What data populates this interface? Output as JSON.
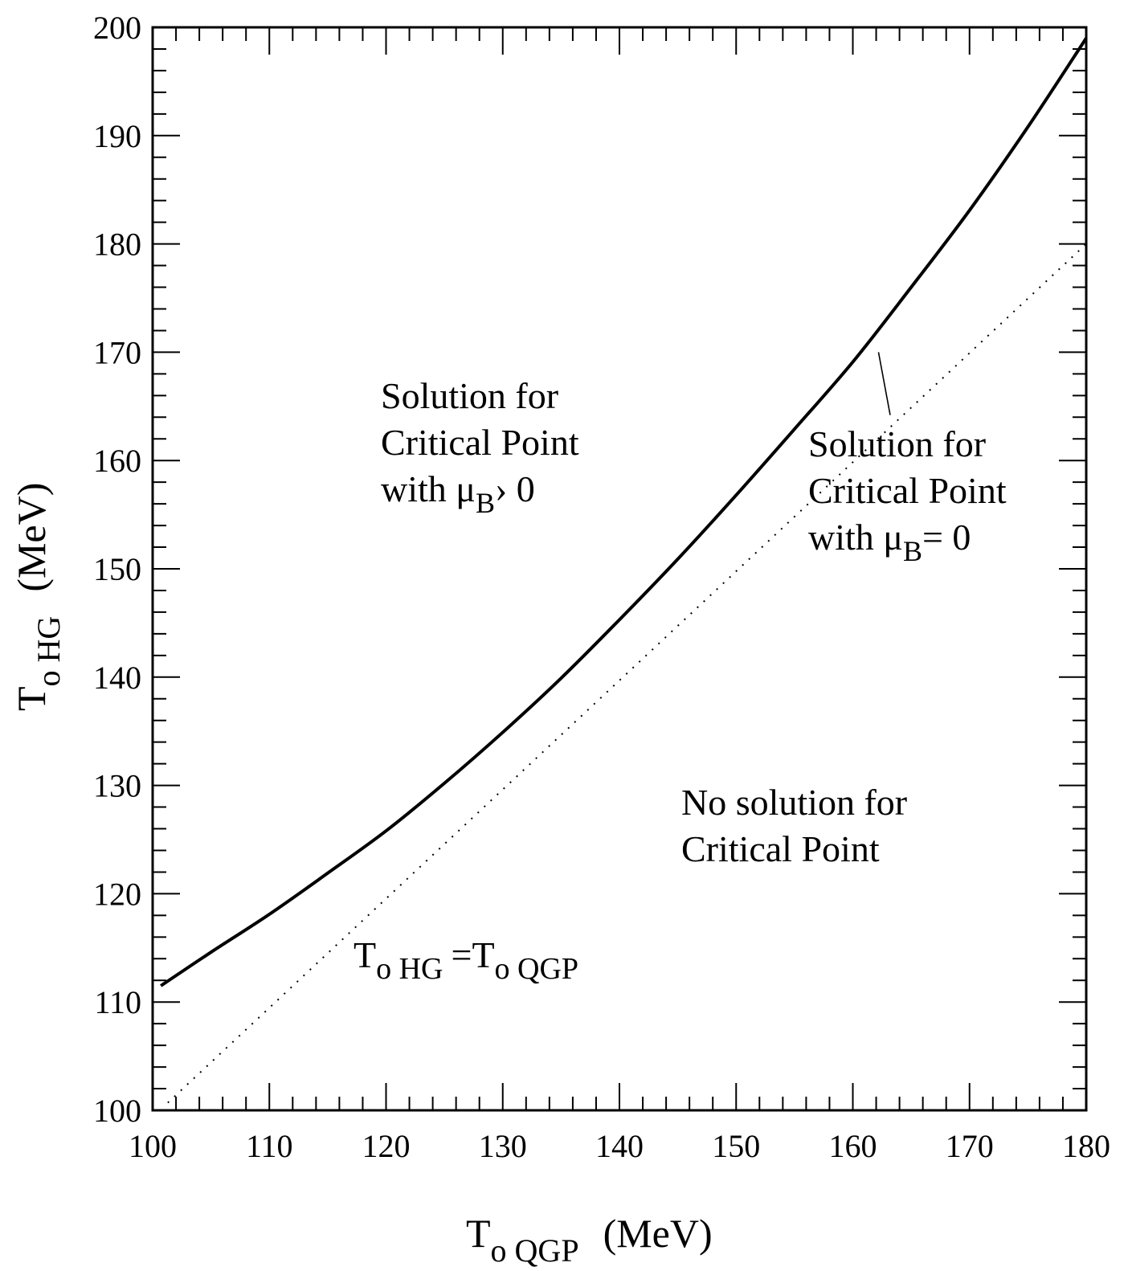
{
  "chart_data": {
    "type": "line",
    "xlabel": {
      "main": "T",
      "sub": "o QGP",
      "unit": "(MeV)"
    },
    "ylabel": {
      "main": "T",
      "sub": "o HG",
      "unit": "(MeV)"
    },
    "xlim": [
      100,
      180
    ],
    "ylim": [
      100,
      200
    ],
    "x_ticks": [
      "100",
      "110",
      "120",
      "130",
      "140",
      "150",
      "160",
      "170",
      "180"
    ],
    "y_ticks": [
      "100",
      "110",
      "120",
      "130",
      "140",
      "150",
      "160",
      "170",
      "180",
      "190",
      "200"
    ],
    "grid": false,
    "series": [
      {
        "style": "solid",
        "x": [
          100.7,
          105,
          110,
          115,
          120,
          125,
          130,
          135,
          140,
          145,
          150,
          155,
          160,
          165,
          170,
          175,
          180
        ],
        "y": [
          111.5,
          114.6,
          118.1,
          121.9,
          125.8,
          130.2,
          134.9,
          139.9,
          145.3,
          150.9,
          156.8,
          162.9,
          169.1,
          176.0,
          183.1,
          190.8,
          199.0
        ]
      },
      {
        "style": "dotted",
        "x": [
          101.3,
          180
        ],
        "y": [
          100.7,
          180
        ]
      }
    ],
    "annotations": [
      {
        "lines": [
          "Solution for",
          "Critical Point",
          "with μ|B|› 0"
        ]
      },
      {
        "lines": [
          "Solution for",
          "Critical Point",
          "with μ|B|= 0"
        ]
      },
      {
        "lines": [
          "No solution for",
          "Critical Point"
        ]
      },
      {
        "main1": "T",
        "sub1": "o HG",
        "eq": "=T",
        "sub2": "o QGP"
      }
    ]
  }
}
